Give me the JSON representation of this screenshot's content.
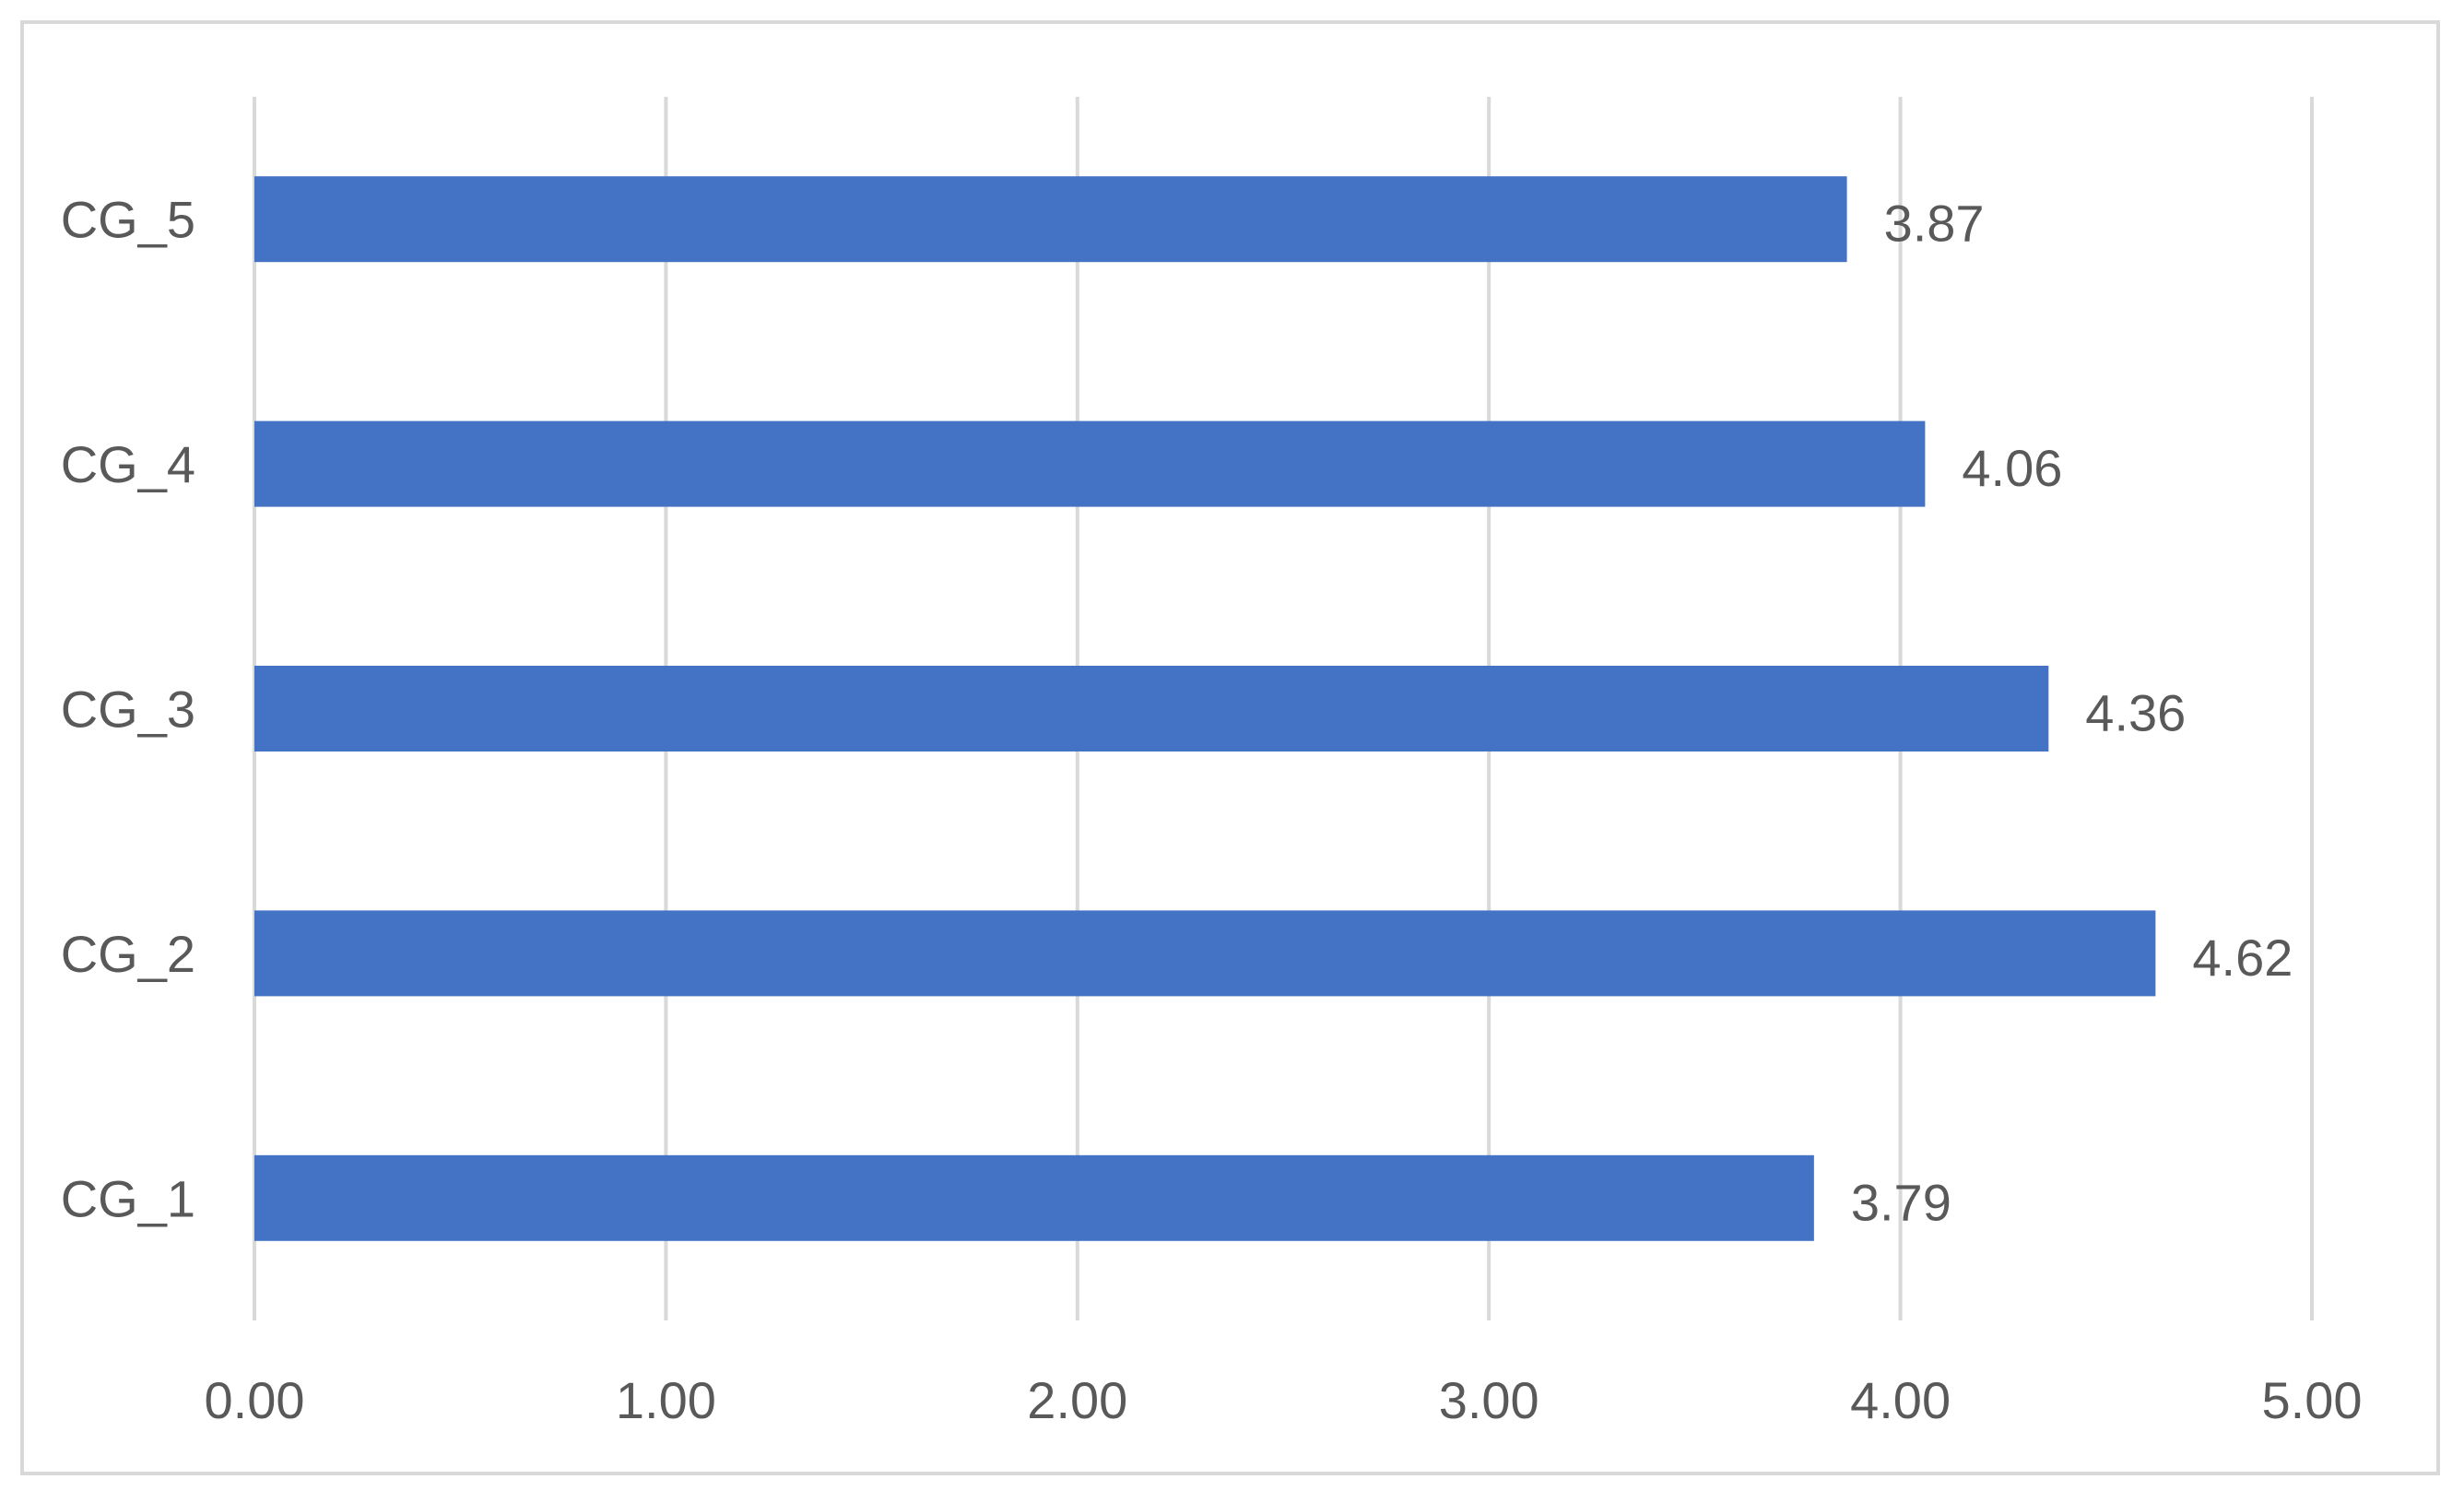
{
  "chart_data": {
    "type": "bar",
    "orientation": "horizontal",
    "title": "",
    "xlabel": "",
    "ylabel": "",
    "categories": [
      "CG_1",
      "CG_2",
      "CG_3",
      "CG_4",
      "CG_5"
    ],
    "values": [
      3.79,
      4.62,
      4.36,
      4.06,
      3.87
    ],
    "data_labels": [
      "3.79",
      "4.62",
      "4.36",
      "4.06",
      "3.87"
    ],
    "xlim": [
      0,
      5
    ],
    "x_ticks": [
      0,
      1,
      2,
      3,
      4,
      5
    ],
    "x_tick_labels": [
      "0.00",
      "1.00",
      "2.00",
      "3.00",
      "4.00",
      "5.00"
    ],
    "grid": "vertical",
    "legend": "none",
    "colors": {
      "bar": "#4472c4",
      "grid": "#d9d9d9",
      "text": "#595959"
    }
  }
}
